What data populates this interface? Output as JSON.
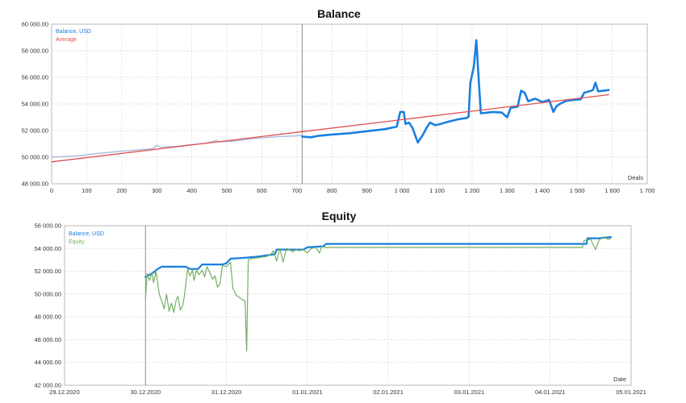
{
  "colors": {
    "balance_history": "#a9b8de",
    "balance": "#1a7fe0",
    "average": "#e05050",
    "equity": "#72b062",
    "grid": "#d9d9d9",
    "frame": "#b8b8b8"
  },
  "chart_data": [
    {
      "type": "line",
      "title": "Balance",
      "xlabel": "Deals",
      "xlim": [
        0,
        1700
      ],
      "ylim": [
        48000,
        60000
      ],
      "x_ticks": [
        0,
        100,
        200,
        300,
        400,
        500,
        600,
        700,
        800,
        900,
        1000,
        1100,
        1200,
        1300,
        1400,
        1500,
        1600,
        1700
      ],
      "x_tick_labels": [
        "0",
        "100",
        "200",
        "300",
        "400",
        "500",
        "600",
        "700",
        "800",
        "900",
        "1 000",
        "1 100",
        "1 200",
        "1 300",
        "1 400",
        "1 500",
        "1 600",
        "1 700"
      ],
      "y_ticks": [
        48000,
        50000,
        52000,
        54000,
        56000,
        58000,
        60000
      ],
      "y_tick_labels": [
        "48 000.00",
        "50 000.00",
        "52 000.00",
        "54 000.00",
        "56 000.00",
        "58 000.00",
        "60 000.00"
      ],
      "vline_x": 715,
      "grid": true,
      "legend_position": "top-left",
      "series": [
        {
          "name": "Balance, USD",
          "points": [
            [
              0,
              50000
            ],
            [
              40,
              50050
            ],
            [
              80,
              50100
            ],
            [
              120,
              50250
            ],
            [
              160,
              50350
            ],
            [
              200,
              50450
            ],
            [
              250,
              50550
            ],
            [
              290,
              50650
            ],
            [
              300,
              50900
            ],
            [
              310,
              50750
            ],
            [
              350,
              50800
            ],
            [
              400,
              50950
            ],
            [
              440,
              51050
            ],
            [
              470,
              51250
            ],
            [
              480,
              51150
            ],
            [
              520,
              51200
            ],
            [
              560,
              51350
            ],
            [
              600,
              51450
            ],
            [
              650,
              51550
            ],
            [
              700,
              51600
            ],
            [
              715,
              51650
            ]
          ]
        },
        {
          "name": "Balance, USD",
          "points": [
            [
              715,
              51550
            ],
            [
              740,
              51500
            ],
            [
              760,
              51600
            ],
            [
              800,
              51700
            ],
            [
              850,
              51800
            ],
            [
              900,
              51950
            ],
            [
              950,
              52100
            ],
            [
              985,
              52300
            ],
            [
              995,
              53400
            ],
            [
              1005,
              53400
            ],
            [
              1010,
              52500
            ],
            [
              1020,
              52600
            ],
            [
              1030,
              52200
            ],
            [
              1045,
              51100
            ],
            [
              1060,
              51700
            ],
            [
              1070,
              52200
            ],
            [
              1080,
              52600
            ],
            [
              1095,
              52400
            ],
            [
              1110,
              52500
            ],
            [
              1130,
              52650
            ],
            [
              1160,
              52850
            ],
            [
              1185,
              52950
            ],
            [
              1190,
              53050
            ],
            [
              1195,
              55600
            ],
            [
              1205,
              56800
            ],
            [
              1212,
              58800
            ],
            [
              1218,
              56200
            ],
            [
              1225,
              53300
            ],
            [
              1260,
              53400
            ],
            [
              1285,
              53350
            ],
            [
              1300,
              53000
            ],
            [
              1310,
              53700
            ],
            [
              1330,
              53800
            ],
            [
              1340,
              55000
            ],
            [
              1350,
              54850
            ],
            [
              1360,
              54200
            ],
            [
              1380,
              54400
            ],
            [
              1400,
              54150
            ],
            [
              1420,
              54300
            ],
            [
              1432,
              53400
            ],
            [
              1440,
              53800
            ],
            [
              1450,
              54000
            ],
            [
              1470,
              54250
            ],
            [
              1490,
              54300
            ],
            [
              1510,
              54350
            ],
            [
              1520,
              54850
            ],
            [
              1535,
              54950
            ],
            [
              1545,
              55050
            ],
            [
              1552,
              55600
            ],
            [
              1560,
              54950
            ],
            [
              1590,
              55050
            ]
          ]
        },
        {
          "name": "Average",
          "points": [
            [
              0,
              49650
            ],
            [
              1590,
              54700
            ]
          ]
        }
      ]
    },
    {
      "type": "line",
      "title": "Equity",
      "xlabel": "Date",
      "x_tick_labels": [
        "29.12.2020",
        "30.12.2020",
        "31.12.2020",
        "01.01.2021",
        "02.01.2021",
        "03.01.2021",
        "04.01.2021",
        "05.01.2021"
      ],
      "xlim": [
        0,
        7
      ],
      "ylim": [
        42000,
        56000
      ],
      "y_ticks": [
        42000,
        44000,
        46000,
        48000,
        50000,
        52000,
        54000,
        56000
      ],
      "y_tick_labels": [
        "42 000.00",
        "44 000.00",
        "46 000.00",
        "48 000.00",
        "50 000.00",
        "52 000.00",
        "54 000.00",
        "56 000.00"
      ],
      "vline_x": 1,
      "grid": true,
      "legend_position": "top-left",
      "series": [
        {
          "name": "Balance, USD",
          "points": [
            [
              1.0,
              51500
            ],
            [
              1.05,
              51700
            ],
            [
              1.1,
              51900
            ],
            [
              1.15,
              52200
            ],
            [
              1.2,
              52400
            ],
            [
              1.35,
              52400
            ],
            [
              1.5,
              52400
            ],
            [
              1.55,
              52200
            ],
            [
              1.65,
              52200
            ],
            [
              1.7,
              52600
            ],
            [
              1.95,
              52600
            ],
            [
              2.0,
              52700
            ],
            [
              2.05,
              53100
            ],
            [
              2.25,
              53200
            ],
            [
              2.4,
              53300
            ],
            [
              2.6,
              53500
            ],
            [
              2.62,
              53900
            ],
            [
              2.95,
              53900
            ],
            [
              3.0,
              54100
            ],
            [
              3.2,
              54200
            ],
            [
              3.23,
              54400
            ],
            [
              5.05,
              54400
            ],
            [
              6.35,
              54400
            ],
            [
              6.45,
              54400
            ],
            [
              6.46,
              54900
            ],
            [
              6.6,
              54900
            ],
            [
              6.75,
              55000
            ]
          ]
        },
        {
          "name": "Equity",
          "points": [
            [
              1.0,
              49600
            ],
            [
              1.02,
              51800
            ],
            [
              1.05,
              51200
            ],
            [
              1.08,
              51900
            ],
            [
              1.1,
              51000
            ],
            [
              1.13,
              52000
            ],
            [
              1.17,
              50000
            ],
            [
              1.2,
              49400
            ],
            [
              1.23,
              48700
            ],
            [
              1.26,
              50000
            ],
            [
              1.29,
              48500
            ],
            [
              1.32,
              49200
            ],
            [
              1.35,
              48400
            ],
            [
              1.38,
              49500
            ],
            [
              1.4,
              49800
            ],
            [
              1.43,
              48600
            ],
            [
              1.46,
              49000
            ],
            [
              1.48,
              49800
            ],
            [
              1.5,
              51000
            ],
            [
              1.52,
              52200
            ],
            [
              1.55,
              51600
            ],
            [
              1.58,
              52100
            ],
            [
              1.6,
              51200
            ],
            [
              1.63,
              52100
            ],
            [
              1.66,
              51700
            ],
            [
              1.7,
              52100
            ],
            [
              1.73,
              51500
            ],
            [
              1.76,
              52400
            ],
            [
              1.8,
              51800
            ],
            [
              1.83,
              51300
            ],
            [
              1.86,
              51600
            ],
            [
              1.89,
              50600
            ],
            [
              1.92,
              50900
            ],
            [
              1.95,
              52500
            ],
            [
              2.0,
              52400
            ],
            [
              2.05,
              52800
            ],
            [
              2.08,
              50500
            ],
            [
              2.12,
              49900
            ],
            [
              2.16,
              49700
            ],
            [
              2.2,
              49500
            ],
            [
              2.23,
              49400
            ],
            [
              2.25,
              45000
            ],
            [
              2.27,
              53000
            ],
            [
              2.3,
              53100
            ],
            [
              2.4,
              53200
            ],
            [
              2.5,
              53300
            ],
            [
              2.55,
              53500
            ],
            [
              2.58,
              53800
            ],
            [
              2.62,
              52900
            ],
            [
              2.66,
              54000
            ],
            [
              2.7,
              52800
            ],
            [
              2.74,
              54000
            ],
            [
              2.78,
              53900
            ],
            [
              2.82,
              53700
            ],
            [
              2.86,
              53900
            ],
            [
              2.9,
              53800
            ],
            [
              2.95,
              53900
            ],
            [
              3.0,
              53600
            ],
            [
              3.05,
              54000
            ],
            [
              3.1,
              54100
            ],
            [
              3.15,
              53600
            ],
            [
              3.18,
              54200
            ],
            [
              3.21,
              54100
            ],
            [
              3.24,
              54100
            ],
            [
              5.5,
              54100
            ],
            [
              6.4,
              54100
            ],
            [
              6.42,
              54700
            ],
            [
              6.5,
              54800
            ],
            [
              6.56,
              53900
            ],
            [
              6.6,
              54700
            ],
            [
              6.65,
              55000
            ],
            [
              6.72,
              54800
            ],
            [
              6.75,
              54900
            ]
          ]
        }
      ]
    }
  ]
}
